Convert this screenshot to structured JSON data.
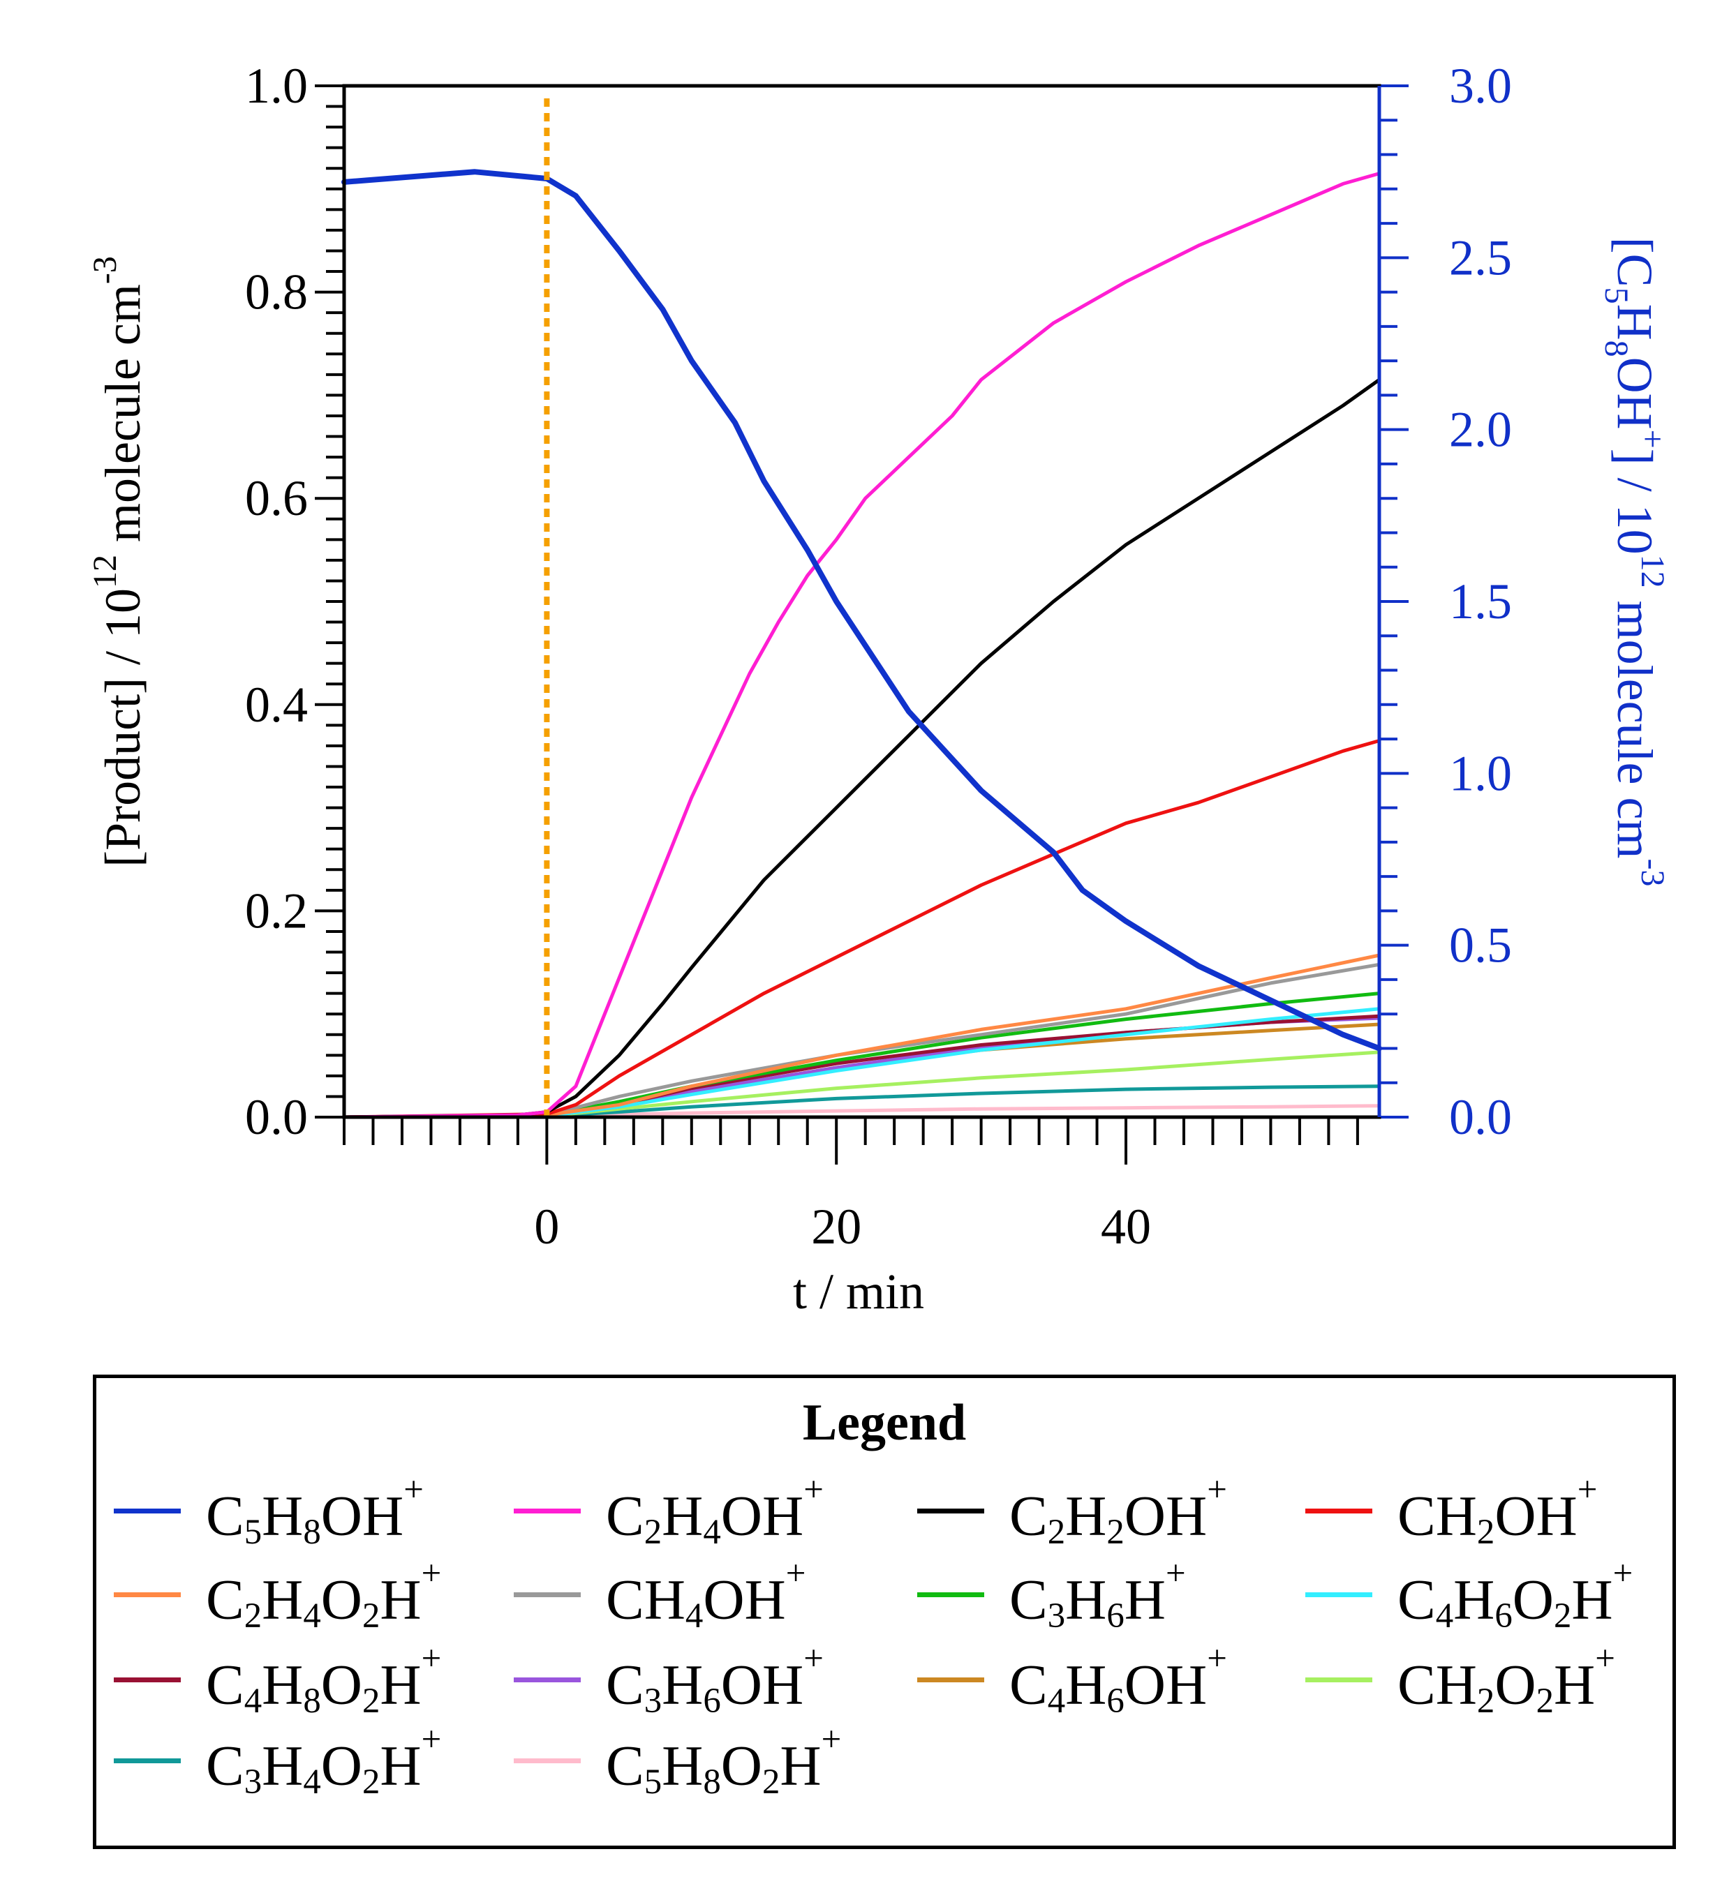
{
  "chart_data": {
    "type": "line",
    "x_label": "t / min",
    "y_left_label": {
      "base": "[Product] / 10",
      "exp": "12",
      "mid": " molecule cm",
      "exp2": "-3"
    },
    "y_right_label": {
      "pre": "[C",
      "s1": "5",
      "h": "H",
      "s2": "8",
      "oh": "OH",
      "plus": "+",
      "post": "] / 10",
      "exp": "12",
      "mid": " molecule cm",
      "exp2": "-3"
    },
    "xlim": [
      -14,
      57.5
    ],
    "ylim_left": [
      0,
      1.0
    ],
    "ylim_right": [
      0,
      3.0
    ],
    "x_ticks": [
      "0",
      "20",
      "40"
    ],
    "x_tick_values": [
      0,
      20,
      40
    ],
    "y_left_ticks": [
      "0.0",
      "0.2",
      "0.4",
      "0.6",
      "0.8",
      "1.0"
    ],
    "y_left_tick_values": [
      0,
      0.2,
      0.4,
      0.6,
      0.8,
      1.0
    ],
    "y_right_ticks": [
      "0.0",
      "0.5",
      "1.0",
      "1.5",
      "2.0",
      "2.5",
      "3.0"
    ],
    "y_right_tick_values": [
      0,
      0.5,
      1.0,
      1.5,
      2.0,
      2.5,
      3.0
    ],
    "marker_x": 0,
    "marker_color": "#F5A000",
    "right_axis_color": "#1030C8",
    "series": [
      {
        "name": "C5H8OH+",
        "axis": "right",
        "color": "#1033CC",
        "width": 8,
        "x": [
          -14,
          -5,
          0,
          2,
          5,
          8,
          10,
          13,
          15,
          18,
          20,
          25,
          30,
          35,
          37,
          40,
          45,
          50,
          55,
          57.5
        ],
        "y": [
          2.72,
          2.75,
          2.73,
          2.68,
          2.52,
          2.35,
          2.2,
          2.02,
          1.85,
          1.65,
          1.5,
          1.18,
          0.95,
          0.77,
          0.66,
          0.57,
          0.44,
          0.34,
          0.24,
          0.2
        ]
      },
      {
        "name": "C2H4OH+",
        "axis": "left",
        "color": "#FF1ED2",
        "width": 5,
        "x": [
          -14,
          -2,
          0,
          2,
          4,
          6,
          8,
          10,
          12,
          14,
          16,
          18,
          20,
          22,
          25,
          28,
          30,
          35,
          40,
          45,
          50,
          55,
          57.5
        ],
        "y": [
          0,
          0.002,
          0.005,
          0.03,
          0.1,
          0.17,
          0.24,
          0.31,
          0.37,
          0.43,
          0.48,
          0.525,
          0.56,
          0.6,
          0.64,
          0.68,
          0.715,
          0.77,
          0.81,
          0.845,
          0.875,
          0.905,
          0.915
        ]
      },
      {
        "name": "C2H2OH+",
        "axis": "left",
        "color": "#000000",
        "width": 5,
        "x": [
          -14,
          -2,
          0,
          2,
          5,
          8,
          10,
          15,
          20,
          25,
          30,
          35,
          40,
          45,
          50,
          55,
          57.5
        ],
        "y": [
          0,
          0.002,
          0.005,
          0.02,
          0.06,
          0.11,
          0.145,
          0.23,
          0.3,
          0.37,
          0.44,
          0.5,
          0.555,
          0.6,
          0.645,
          0.69,
          0.715
        ]
      },
      {
        "name": "CH2OH+",
        "axis": "left",
        "color": "#EE1111",
        "width": 5,
        "x": [
          -14,
          0,
          2,
          5,
          10,
          15,
          20,
          25,
          30,
          35,
          40,
          45,
          50,
          55,
          57.5
        ],
        "y": [
          0,
          0.003,
          0.012,
          0.04,
          0.08,
          0.12,
          0.155,
          0.19,
          0.225,
          0.255,
          0.285,
          0.305,
          0.33,
          0.355,
          0.365
        ]
      },
      {
        "name": "C2H4O2H+",
        "axis": "left",
        "color": "#FF8844",
        "width": 5,
        "x": [
          -14,
          0,
          5,
          10,
          20,
          30,
          40,
          50,
          57.5
        ],
        "y": [
          0,
          0.002,
          0.012,
          0.03,
          0.06,
          0.085,
          0.105,
          0.135,
          0.157
        ]
      },
      {
        "name": "CH4OH+",
        "axis": "left",
        "color": "#999999",
        "width": 5,
        "x": [
          -14,
          0,
          5,
          10,
          20,
          30,
          40,
          50,
          57.5
        ],
        "y": [
          0,
          0.002,
          0.02,
          0.035,
          0.06,
          0.08,
          0.1,
          0.13,
          0.148
        ]
      },
      {
        "name": "C3H6H+",
        "axis": "left",
        "color": "#11BB11",
        "width": 5,
        "x": [
          -14,
          0,
          5,
          10,
          20,
          30,
          40,
          50,
          57.5
        ],
        "y": [
          0,
          0.002,
          0.015,
          0.03,
          0.055,
          0.077,
          0.095,
          0.11,
          0.12
        ]
      },
      {
        "name": "C4H6O2H+",
        "axis": "left",
        "color": "#33EEFF",
        "width": 5,
        "x": [
          -14,
          0,
          5,
          10,
          20,
          30,
          40,
          50,
          57.5
        ],
        "y": [
          0,
          0.001,
          0.01,
          0.022,
          0.045,
          0.065,
          0.08,
          0.095,
          0.105
        ]
      },
      {
        "name": "C4H8O2H+",
        "axis": "left",
        "color": "#991133",
        "width": 5,
        "x": [
          -14,
          0,
          5,
          10,
          20,
          30,
          40,
          50,
          57.5
        ],
        "y": [
          0,
          0.001,
          0.012,
          0.028,
          0.052,
          0.07,
          0.082,
          0.092,
          0.098
        ]
      },
      {
        "name": "C3H6OH+",
        "axis": "left",
        "color": "#9955DD",
        "width": 5,
        "x": [
          -14,
          0,
          5,
          10,
          20,
          30,
          40,
          50,
          57.5
        ],
        "y": [
          0,
          0.001,
          0.012,
          0.025,
          0.048,
          0.068,
          0.082,
          0.092,
          0.096
        ]
      },
      {
        "name": "C4H6OH+",
        "axis": "left",
        "color": "#CC8822",
        "width": 5,
        "x": [
          -14,
          0,
          5,
          10,
          20,
          30,
          40,
          50,
          57.5
        ],
        "y": [
          0,
          0.001,
          0.01,
          0.025,
          0.048,
          0.065,
          0.076,
          0.084,
          0.09
        ]
      },
      {
        "name": "CH2O2H+",
        "axis": "left",
        "color": "#A6F060",
        "width": 5,
        "x": [
          -14,
          0,
          5,
          10,
          20,
          30,
          40,
          50,
          57.5
        ],
        "y": [
          0,
          0.001,
          0.008,
          0.015,
          0.028,
          0.038,
          0.046,
          0.056,
          0.063
        ]
      },
      {
        "name": "C3H4O2H+",
        "axis": "left",
        "color": "#119999",
        "width": 5,
        "x": [
          -14,
          0,
          5,
          10,
          20,
          30,
          40,
          50,
          57.5
        ],
        "y": [
          0,
          0.001,
          0.005,
          0.01,
          0.018,
          0.023,
          0.027,
          0.029,
          0.03
        ]
      },
      {
        "name": "C5H8O2H+",
        "axis": "left",
        "color": "#FFBBCC",
        "width": 5,
        "x": [
          -14,
          0,
          10,
          20,
          30,
          40,
          50,
          57.5
        ],
        "y": [
          0,
          0.001,
          0.004,
          0.006,
          0.008,
          0.009,
          0.01,
          0.011
        ]
      }
    ]
  },
  "legend": {
    "title": "Legend",
    "items": [
      {
        "color": "#1033CC",
        "parts": [
          [
            "C",
            ""
          ],
          [
            "5",
            "sub"
          ],
          [
            "H",
            ""
          ],
          [
            "8",
            "sub"
          ],
          [
            "OH",
            ""
          ],
          [
            "+",
            "sup"
          ]
        ]
      },
      {
        "color": "#FF1ED2",
        "parts": [
          [
            "C",
            ""
          ],
          [
            "2",
            "sub"
          ],
          [
            "H",
            ""
          ],
          [
            "4",
            "sub"
          ],
          [
            "OH",
            ""
          ],
          [
            "+",
            "sup"
          ]
        ]
      },
      {
        "color": "#000000",
        "parts": [
          [
            "C",
            ""
          ],
          [
            "2",
            "sub"
          ],
          [
            "H",
            ""
          ],
          [
            "2",
            "sub"
          ],
          [
            "OH",
            ""
          ],
          [
            "+",
            "sup"
          ]
        ]
      },
      {
        "color": "#EE1111",
        "parts": [
          [
            "CH",
            ""
          ],
          [
            "2",
            "sub"
          ],
          [
            "OH",
            ""
          ],
          [
            "+",
            "sup"
          ]
        ]
      },
      {
        "color": "#FF8844",
        "parts": [
          [
            "C",
            ""
          ],
          [
            "2",
            "sub"
          ],
          [
            "H",
            ""
          ],
          [
            "4",
            "sub"
          ],
          [
            "O",
            ""
          ],
          [
            "2",
            "sub"
          ],
          [
            "H",
            ""
          ],
          [
            "+",
            "sup"
          ]
        ]
      },
      {
        "color": "#999999",
        "parts": [
          [
            "CH",
            ""
          ],
          [
            "4",
            "sub"
          ],
          [
            "OH",
            ""
          ],
          [
            "+",
            "sup"
          ]
        ]
      },
      {
        "color": "#11BB11",
        "parts": [
          [
            "C",
            ""
          ],
          [
            "3",
            "sub"
          ],
          [
            "H",
            ""
          ],
          [
            "6",
            "sub"
          ],
          [
            "H",
            ""
          ],
          [
            "+",
            "sup"
          ]
        ]
      },
      {
        "color": "#33EEFF",
        "parts": [
          [
            "C",
            ""
          ],
          [
            "4",
            "sub"
          ],
          [
            "H",
            ""
          ],
          [
            "6",
            "sub"
          ],
          [
            "O",
            ""
          ],
          [
            "2",
            "sub"
          ],
          [
            "H",
            ""
          ],
          [
            "+",
            "sup"
          ]
        ]
      },
      {
        "color": "#991133",
        "parts": [
          [
            "C",
            ""
          ],
          [
            "4",
            "sub"
          ],
          [
            "H",
            ""
          ],
          [
            "8",
            "sub"
          ],
          [
            "O",
            ""
          ],
          [
            "2",
            "sub"
          ],
          [
            "H",
            ""
          ],
          [
            "+",
            "sup"
          ]
        ]
      },
      {
        "color": "#9955DD",
        "parts": [
          [
            "C",
            ""
          ],
          [
            "3",
            "sub"
          ],
          [
            "H",
            ""
          ],
          [
            "6",
            "sub"
          ],
          [
            "OH",
            ""
          ],
          [
            "+",
            "sup"
          ]
        ]
      },
      {
        "color": "#CC8822",
        "parts": [
          [
            "C",
            ""
          ],
          [
            "4",
            "sub"
          ],
          [
            "H",
            ""
          ],
          [
            "6",
            "sub"
          ],
          [
            "OH",
            ""
          ],
          [
            "+",
            "sup"
          ]
        ]
      },
      {
        "color": "#A6F060",
        "parts": [
          [
            "CH",
            ""
          ],
          [
            "2",
            "sub"
          ],
          [
            "O",
            ""
          ],
          [
            "2",
            "sub"
          ],
          [
            "H",
            ""
          ],
          [
            "+",
            "sup"
          ]
        ]
      },
      {
        "color": "#119999",
        "parts": [
          [
            "C",
            ""
          ],
          [
            "3",
            "sub"
          ],
          [
            "H",
            ""
          ],
          [
            "4",
            "sub"
          ],
          [
            "O",
            ""
          ],
          [
            "2",
            "sub"
          ],
          [
            "H",
            ""
          ],
          [
            "+",
            "sup"
          ]
        ]
      },
      {
        "color": "#FFBBCC",
        "parts": [
          [
            "C",
            ""
          ],
          [
            "5",
            "sub"
          ],
          [
            "H",
            ""
          ],
          [
            "8",
            "sub"
          ],
          [
            "O",
            ""
          ],
          [
            "2",
            "sub"
          ],
          [
            "H",
            ""
          ],
          [
            "+",
            "sup"
          ]
        ]
      }
    ]
  }
}
